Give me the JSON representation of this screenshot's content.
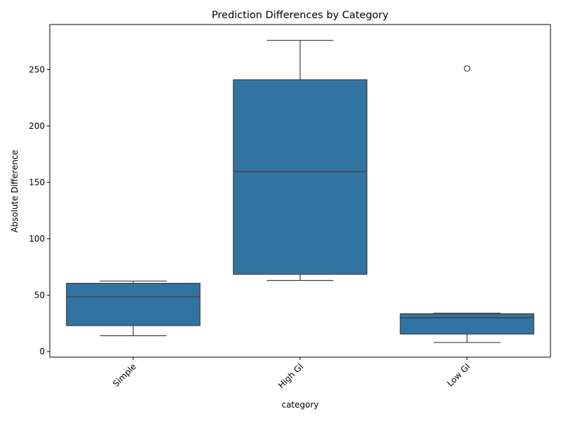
{
  "chart_data": {
    "type": "box",
    "title": "Prediction Differences by Category",
    "xlabel": "category",
    "ylabel": "Absolute Difference",
    "categories": [
      "Simple",
      "High GI",
      "Low GI"
    ],
    "ylim": [
      -5,
      290
    ],
    "yticks": [
      0,
      50,
      100,
      150,
      200,
      250
    ],
    "grid": false,
    "box_color": "#3274a1",
    "edge_color": "#3d3d3d",
    "boxes": [
      {
        "category": "Simple",
        "whisker_low": 14,
        "q1": 23,
        "median": 48.5,
        "q3": 60.5,
        "whisker_high": 62.5,
        "outliers": []
      },
      {
        "category": "High GI",
        "whisker_low": 63,
        "q1": 68.5,
        "median": 159.5,
        "q3": 241,
        "whisker_high": 276,
        "outliers": []
      },
      {
        "category": "Low GI",
        "whisker_low": 8,
        "q1": 15.5,
        "median": 30,
        "q3": 33.5,
        "whisker_high": 34,
        "outliers": [
          251
        ]
      }
    ]
  }
}
